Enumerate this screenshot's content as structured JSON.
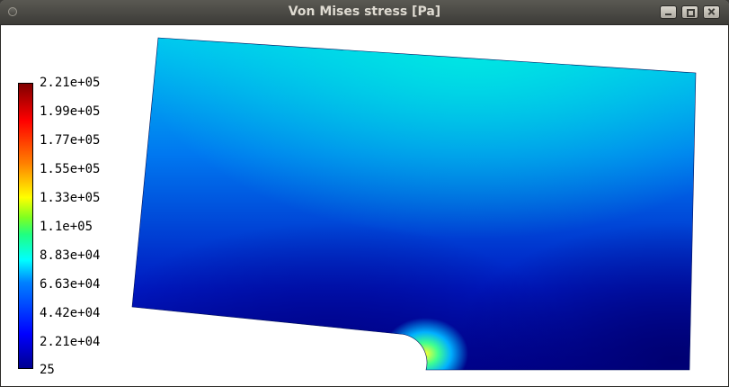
{
  "window": {
    "title": "Von Mises stress [Pa]",
    "buttons": [
      "minimize",
      "maximize",
      "close"
    ]
  },
  "colorbar": {
    "labels": [
      "2.21e+05",
      "1.99e+05",
      "1.77e+05",
      "1.55e+05",
      "1.33e+05",
      "1.1e+05",
      "8.83e+04",
      "6.63e+04",
      "4.42e+04",
      "2.21e+04",
      "25"
    ],
    "colors": [
      "#800000",
      "#ff0000",
      "#ff8000",
      "#ffff00",
      "#80ff20",
      "#00ffff",
      "#0080ff",
      "#0000ff",
      "#00008f"
    ]
  },
  "field_colors": {
    "low": "#00008a",
    "mid": "#0060e0",
    "high": "#00e8e0",
    "peak": "#ffff30"
  }
}
